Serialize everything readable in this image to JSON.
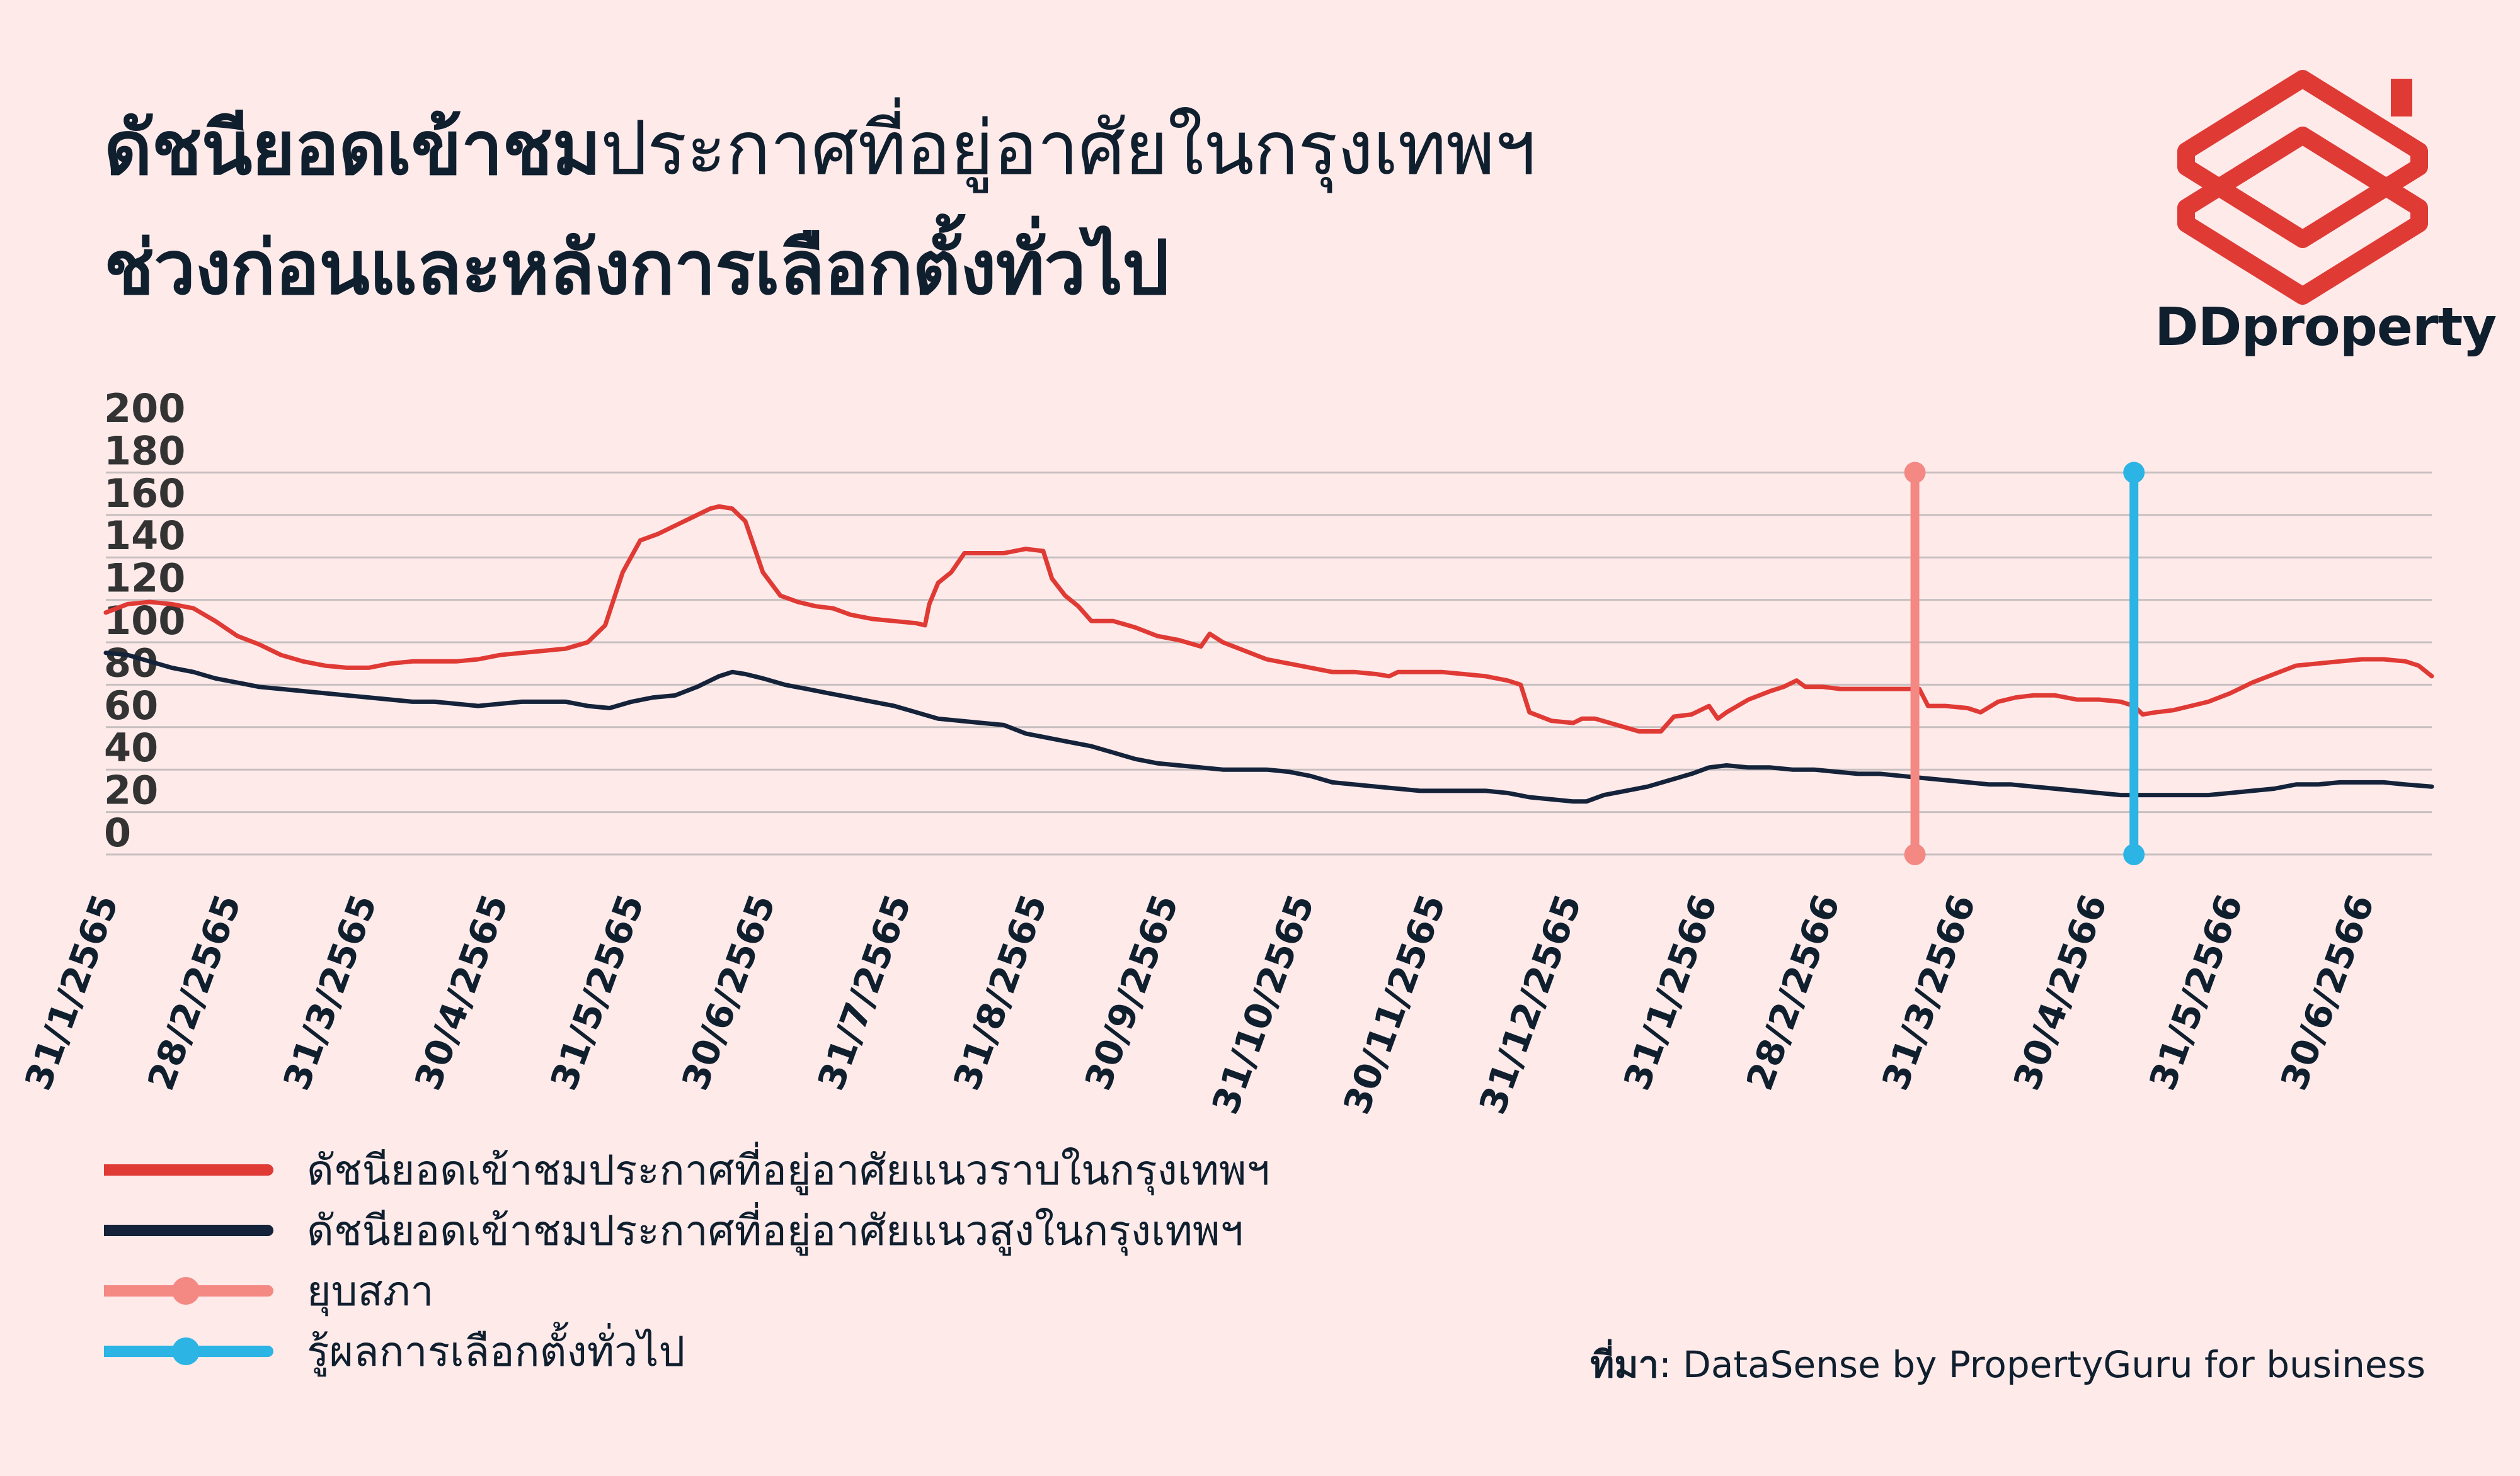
{
  "title": {
    "line1_bold": "ดัชนียอดเข้าชม",
    "line1_regular": "ประกาศที่อยู่อาศัยในกรุงเทพฯ",
    "line2": "ช่วงก่อนและหลังการเลือกตั้งทั่วไป"
  },
  "brand": {
    "name": "DDproperty",
    "icon": "ddproperty-house-logo-icon",
    "color": "#e03a35"
  },
  "source": {
    "label": "ที่มา",
    "text": ": DataSense by PropertyGuru for business"
  },
  "colors": {
    "landed": "#e03a35",
    "highrise": "#14233a",
    "dissolution": "#f48883",
    "election": "#2bb4e4",
    "grid": "#c8c0c0"
  },
  "legend": [
    {
      "label": "ดัชนียอดเข้าชมประกาศที่อยู่อาศัยแนวราบในกรุงเทพฯ",
      "color": "#e03a35",
      "dot": false
    },
    {
      "label": "ดัชนียอดเข้าชมประกาศที่อยู่อาศัยแนวสูงในกรุงเทพฯ",
      "color": "#14233a",
      "dot": false
    },
    {
      "label": "ยุบสภา",
      "color": "#f48883",
      "dot": true
    },
    {
      "label": "รู้ผลการเลือกตั้งทั่วไป",
      "color": "#2bb4e4",
      "dot": true
    }
  ],
  "chart_data": {
    "type": "line",
    "ylim": [
      0,
      200
    ],
    "yticks": [
      200,
      180,
      160,
      140,
      120,
      100,
      80,
      60,
      40,
      20,
      0
    ],
    "grid": true,
    "x_tick_labels": [
      "31/1/2565",
      "28/2/2565",
      "31/3/2565",
      "30/4/2565",
      "31/5/2565",
      "30/6/2565",
      "31/7/2565",
      "31/8/2565",
      "30/9/2565",
      "31/10/2565",
      "30/11/2565",
      "31/12/2565",
      "31/1/2566",
      "28/2/2566",
      "31/3/2566",
      "30/4/2566",
      "31/5/2566",
      "30/6/2566"
    ],
    "x_tick_days": [
      0,
      28,
      59,
      89,
      120,
      150,
      181,
      212,
      242,
      273,
      303,
      334,
      365,
      393,
      424,
      454,
      485,
      515
    ],
    "series": [
      {
        "name": "ดัชนียอดเข้าชมประกาศที่อยู่อาศัยแนวราบในกรุงเทพฯ",
        "color": "#e03a35",
        "points": [
          [
            0,
            114
          ],
          [
            5,
            118
          ],
          [
            10,
            119
          ],
          [
            15,
            118
          ],
          [
            20,
            116
          ],
          [
            25,
            110
          ],
          [
            30,
            103
          ],
          [
            35,
            99
          ],
          [
            40,
            94
          ],
          [
            45,
            91
          ],
          [
            50,
            89
          ],
          [
            55,
            88
          ],
          [
            60,
            88
          ],
          [
            65,
            90
          ],
          [
            70,
            91
          ],
          [
            75,
            91
          ],
          [
            80,
            91
          ],
          [
            85,
            92
          ],
          [
            90,
            94
          ],
          [
            95,
            95
          ],
          [
            100,
            96
          ],
          [
            105,
            97
          ],
          [
            110,
            100
          ],
          [
            114,
            108
          ],
          [
            118,
            133
          ],
          [
            122,
            148
          ],
          [
            126,
            151
          ],
          [
            130,
            155
          ],
          [
            134,
            159
          ],
          [
            138,
            163
          ],
          [
            140,
            164
          ],
          [
            143,
            163
          ],
          [
            146,
            157
          ],
          [
            148,
            145
          ],
          [
            150,
            133
          ],
          [
            154,
            122
          ],
          [
            158,
            119
          ],
          [
            162,
            117
          ],
          [
            166,
            116
          ],
          [
            170,
            113
          ],
          [
            175,
            111
          ],
          [
            180,
            110
          ],
          [
            185,
            109
          ],
          [
            187,
            108
          ],
          [
            188,
            118
          ],
          [
            190,
            128
          ],
          [
            193,
            133
          ],
          [
            196,
            142
          ],
          [
            200,
            142
          ],
          [
            205,
            142
          ],
          [
            210,
            144
          ],
          [
            214,
            143
          ],
          [
            216,
            130
          ],
          [
            219,
            122
          ],
          [
            222,
            117
          ],
          [
            225,
            110
          ],
          [
            230,
            110
          ],
          [
            235,
            107
          ],
          [
            240,
            103
          ],
          [
            245,
            101
          ],
          [
            250,
            98
          ],
          [
            252,
            104
          ],
          [
            255,
            100
          ],
          [
            260,
            96
          ],
          [
            265,
            92
          ],
          [
            270,
            90
          ],
          [
            275,
            88
          ],
          [
            280,
            86
          ],
          [
            285,
            86
          ],
          [
            290,
            85
          ],
          [
            293,
            84
          ],
          [
            295,
            86
          ],
          [
            300,
            86
          ],
          [
            305,
            86
          ],
          [
            310,
            85
          ],
          [
            315,
            84
          ],
          [
            320,
            82
          ],
          [
            323,
            80
          ],
          [
            325,
            67
          ],
          [
            330,
            63
          ],
          [
            335,
            62
          ],
          [
            337,
            64
          ],
          [
            340,
            64
          ],
          [
            345,
            61
          ],
          [
            350,
            58
          ],
          [
            355,
            58
          ],
          [
            358,
            65
          ],
          [
            362,
            66
          ],
          [
            366,
            70
          ],
          [
            368,
            64
          ],
          [
            370,
            67
          ],
          [
            375,
            73
          ],
          [
            380,
            77
          ],
          [
            383,
            79
          ],
          [
            386,
            82
          ],
          [
            388,
            79
          ],
          [
            392,
            79
          ],
          [
            396,
            78
          ],
          [
            400,
            78
          ],
          [
            405,
            78
          ],
          [
            410,
            78
          ],
          [
            414,
            78
          ],
          [
            416,
            70
          ],
          [
            420,
            70
          ],
          [
            425,
            69
          ],
          [
            428,
            67
          ],
          [
            432,
            72
          ],
          [
            436,
            74
          ],
          [
            440,
            75
          ],
          [
            445,
            75
          ],
          [
            450,
            73
          ],
          [
            455,
            73
          ],
          [
            460,
            72
          ],
          [
            463,
            70
          ],
          [
            465,
            66
          ],
          [
            468,
            67
          ],
          [
            472,
            68
          ],
          [
            476,
            70
          ],
          [
            480,
            72
          ],
          [
            485,
            76
          ],
          [
            490,
            81
          ],
          [
            495,
            85
          ],
          [
            500,
            89
          ],
          [
            505,
            90
          ],
          [
            510,
            91
          ],
          [
            515,
            92
          ],
          [
            520,
            92
          ],
          [
            525,
            91
          ],
          [
            528,
            89
          ],
          [
            531,
            84
          ]
        ]
      },
      {
        "name": "ดัชนียอดเข้าชมประกาศที่อยู่อาศัยแนวสูงในกรุงเทพฯ",
        "color": "#14233a",
        "points": [
          [
            0,
            95
          ],
          [
            5,
            94
          ],
          [
            10,
            91
          ],
          [
            15,
            88
          ],
          [
            20,
            86
          ],
          [
            25,
            83
          ],
          [
            30,
            81
          ],
          [
            35,
            79
          ],
          [
            40,
            78
          ],
          [
            45,
            77
          ],
          [
            50,
            76
          ],
          [
            55,
            75
          ],
          [
            60,
            74
          ],
          [
            65,
            73
          ],
          [
            70,
            72
          ],
          [
            75,
            72
          ],
          [
            80,
            71
          ],
          [
            85,
            70
          ],
          [
            90,
            71
          ],
          [
            95,
            72
          ],
          [
            100,
            72
          ],
          [
            105,
            72
          ],
          [
            110,
            70
          ],
          [
            115,
            69
          ],
          [
            120,
            72
          ],
          [
            125,
            74
          ],
          [
            130,
            75
          ],
          [
            135,
            79
          ],
          [
            140,
            84
          ],
          [
            143,
            86
          ],
          [
            146,
            85
          ],
          [
            150,
            83
          ],
          [
            155,
            80
          ],
          [
            160,
            78
          ],
          [
            165,
            76
          ],
          [
            170,
            74
          ],
          [
            175,
            72
          ],
          [
            180,
            70
          ],
          [
            185,
            67
          ],
          [
            190,
            64
          ],
          [
            195,
            63
          ],
          [
            200,
            62
          ],
          [
            205,
            61
          ],
          [
            210,
            57
          ],
          [
            215,
            55
          ],
          [
            220,
            53
          ],
          [
            225,
            51
          ],
          [
            230,
            48
          ],
          [
            235,
            45
          ],
          [
            240,
            43
          ],
          [
            245,
            42
          ],
          [
            250,
            41
          ],
          [
            255,
            40
          ],
          [
            260,
            40
          ],
          [
            265,
            40
          ],
          [
            270,
            39
          ],
          [
            275,
            37
          ],
          [
            280,
            34
          ],
          [
            285,
            33
          ],
          [
            290,
            32
          ],
          [
            295,
            31
          ],
          [
            300,
            30
          ],
          [
            305,
            30
          ],
          [
            310,
            30
          ],
          [
            315,
            30
          ],
          [
            320,
            29
          ],
          [
            325,
            27
          ],
          [
            330,
            26
          ],
          [
            335,
            25
          ],
          [
            338,
            25
          ],
          [
            342,
            28
          ],
          [
            347,
            30
          ],
          [
            352,
            32
          ],
          [
            357,
            35
          ],
          [
            362,
            38
          ],
          [
            366,
            41
          ],
          [
            370,
            42
          ],
          [
            375,
            41
          ],
          [
            380,
            41
          ],
          [
            385,
            40
          ],
          [
            390,
            40
          ],
          [
            395,
            39
          ],
          [
            400,
            38
          ],
          [
            405,
            38
          ],
          [
            410,
            37
          ],
          [
            415,
            36
          ],
          [
            420,
            35
          ],
          [
            425,
            34
          ],
          [
            430,
            33
          ],
          [
            435,
            33
          ],
          [
            440,
            32
          ],
          [
            445,
            31
          ],
          [
            450,
            30
          ],
          [
            455,
            29
          ],
          [
            460,
            28
          ],
          [
            465,
            28
          ],
          [
            470,
            28
          ],
          [
            475,
            28
          ],
          [
            480,
            28
          ],
          [
            485,
            29
          ],
          [
            490,
            30
          ],
          [
            495,
            31
          ],
          [
            500,
            33
          ],
          [
            505,
            33
          ],
          [
            510,
            34
          ],
          [
            515,
            34
          ],
          [
            520,
            34
          ],
          [
            525,
            33
          ],
          [
            531,
            32
          ]
        ]
      }
    ],
    "markers": [
      {
        "name": "ยุบสภา",
        "day": 413,
        "color": "#f48883"
      },
      {
        "name": "รู้ผลการเลือกตั้งทั่วไป",
        "day": 463,
        "color": "#2bb4e4"
      }
    ]
  }
}
